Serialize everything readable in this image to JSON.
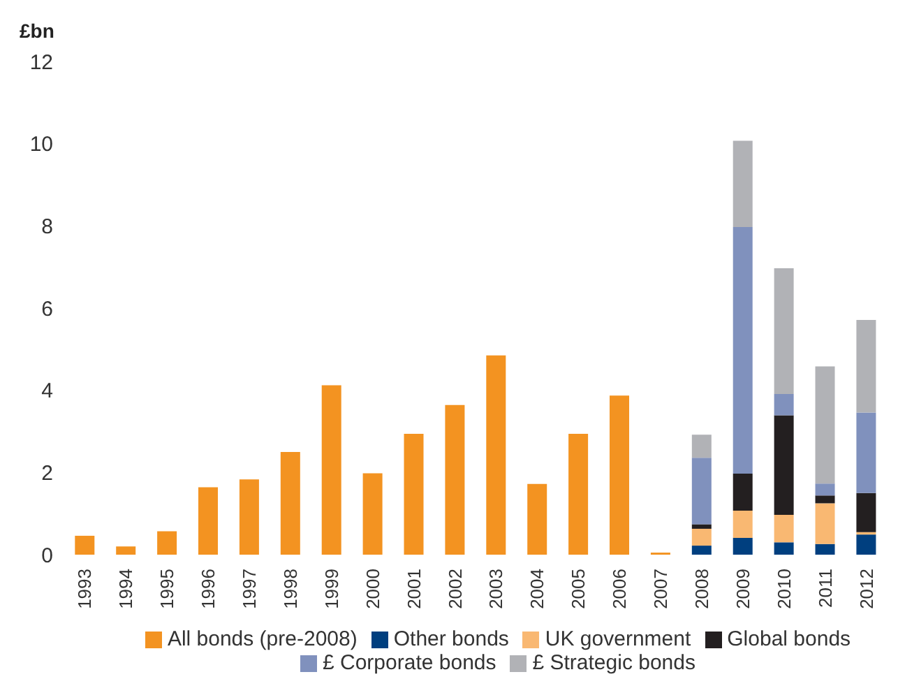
{
  "chart_data": {
    "type": "bar",
    "stacked": true,
    "ylabel": "£bn",
    "categories": [
      "1993",
      "1994",
      "1995",
      "1996",
      "1997",
      "1998",
      "1999",
      "2000",
      "2001",
      "2002",
      "2003",
      "2004",
      "2005",
      "2006",
      "2007",
      "2008",
      "2009",
      "2010",
      "2011",
      "2012"
    ],
    "series": [
      {
        "name": "All bonds (pre-2008)",
        "color": "#f39321",
        "values": [
          0.46,
          0.2,
          0.57,
          1.64,
          1.83,
          2.5,
          4.12,
          1.98,
          2.94,
          3.64,
          4.85,
          1.72,
          2.94,
          3.87,
          0.05,
          null,
          null,
          null,
          null,
          null
        ]
      },
      {
        "name": "Other bonds",
        "color": "#003f7f",
        "values": [
          null,
          null,
          null,
          null,
          null,
          null,
          null,
          null,
          null,
          null,
          null,
          null,
          null,
          null,
          null,
          0.22,
          0.41,
          0.3,
          0.26,
          0.49
        ]
      },
      {
        "name": "UK government",
        "color": "#f9b872",
        "values": [
          null,
          null,
          null,
          null,
          null,
          null,
          null,
          null,
          null,
          null,
          null,
          null,
          null,
          null,
          null,
          0.41,
          0.66,
          0.67,
          0.99,
          0.06
        ]
      },
      {
        "name": "Global bonds",
        "color": "#231f20",
        "values": [
          null,
          null,
          null,
          null,
          null,
          null,
          null,
          null,
          null,
          null,
          null,
          null,
          null,
          null,
          null,
          0.11,
          0.9,
          2.42,
          0.19,
          0.95
        ]
      },
      {
        "name": "£ Corporate bonds",
        "color": "#8091bd",
        "values": [
          null,
          null,
          null,
          null,
          null,
          null,
          null,
          null,
          null,
          null,
          null,
          null,
          null,
          null,
          null,
          1.62,
          6.0,
          0.52,
          0.29,
          1.96
        ]
      },
      {
        "name": "£ Strategic bonds",
        "color": "#b1b2b6",
        "values": [
          null,
          null,
          null,
          null,
          null,
          null,
          null,
          null,
          null,
          null,
          null,
          null,
          null,
          null,
          null,
          0.56,
          2.1,
          3.06,
          2.85,
          2.25
        ]
      }
    ],
    "ylim": [
      0,
      12
    ],
    "yticks": [
      0,
      2,
      4,
      6,
      8,
      10,
      12
    ],
    "grid": false,
    "legend": "bottom"
  }
}
